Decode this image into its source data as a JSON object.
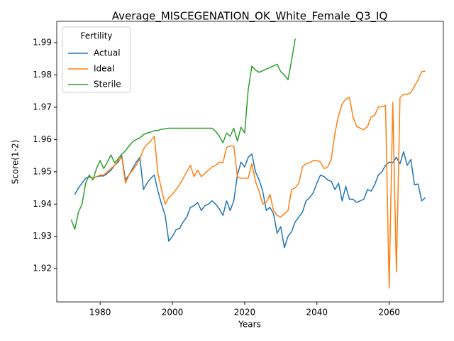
{
  "chart_data": {
    "type": "line",
    "title": "Average_MISCEGENATION_OK_White_Female_Q3_IQ",
    "x_label": "Years",
    "y_label": "Score(1-2)",
    "legend_title": "Fertility",
    "legend_position": "upper left",
    "x": [
      1972,
      1973,
      1974,
      1975,
      1976,
      1977,
      1978,
      1979,
      1980,
      1981,
      1982,
      1983,
      1984,
      1985,
      1986,
      1987,
      1988,
      1989,
      1990,
      1991,
      1992,
      1993,
      1994,
      1995,
      1996,
      1997,
      1998,
      1999,
      2000,
      2001,
      2002,
      2003,
      2004,
      2005,
      2006,
      2007,
      2008,
      2009,
      2010,
      2011,
      2012,
      2013,
      2014,
      2015,
      2016,
      2017,
      2018,
      2019,
      2020,
      2021,
      2022,
      2023,
      2024,
      2025,
      2026,
      2027,
      2028,
      2029,
      2030,
      2031,
      2032,
      2033,
      2034,
      2035,
      2036,
      2037,
      2038,
      2039,
      2040,
      2041,
      2042,
      2043,
      2044,
      2045,
      2046,
      2047,
      2048,
      2049,
      2050,
      2051,
      2052,
      2053,
      2054,
      2055,
      2056,
      2057,
      2058,
      2059,
      2060,
      2061,
      2062,
      2063,
      2064,
      2065,
      2066,
      2067,
      2068,
      2069,
      2070
    ],
    "series": [
      {
        "name": "Actual",
        "color": "#1f77b4",
        "values": [
          null,
          1.943,
          1.945,
          1.9465,
          1.948,
          1.9485,
          1.948,
          1.9485,
          1.9487,
          1.9487,
          1.9495,
          1.9505,
          1.952,
          1.953,
          1.955,
          1.9475,
          1.949,
          1.951,
          1.953,
          1.9545,
          1.9445,
          1.9465,
          1.948,
          1.949,
          1.944,
          1.94,
          1.9365,
          1.9285,
          1.93,
          1.932,
          1.9325,
          1.9345,
          1.936,
          1.939,
          1.9395,
          1.9405,
          1.938,
          1.9395,
          1.94,
          1.941,
          1.94,
          1.9385,
          1.9365,
          1.941,
          1.938,
          1.941,
          1.949,
          1.953,
          1.9515,
          1.9545,
          1.9555,
          1.95,
          1.9475,
          1.944,
          1.938,
          1.939,
          1.937,
          1.931,
          1.933,
          1.9265,
          1.93,
          1.9315,
          1.9345,
          1.936,
          1.9375,
          1.941,
          1.942,
          1.9435,
          1.9465,
          1.949,
          1.9485,
          1.9475,
          1.947,
          1.9445,
          1.9465,
          1.941,
          1.9455,
          1.9415,
          1.9415,
          1.9405,
          1.941,
          1.9415,
          1.9445,
          1.944,
          1.946,
          1.949,
          1.95,
          1.952,
          1.953,
          1.9528,
          1.9545,
          1.9525,
          1.9562,
          1.952,
          1.9538,
          1.946,
          1.9462,
          1.941,
          1.942
        ]
      },
      {
        "name": "Ideal",
        "color": "#ff7f0e",
        "values": [
          null,
          null,
          null,
          null,
          null,
          1.9485,
          1.948,
          1.9485,
          1.949,
          1.949,
          1.95,
          1.951,
          1.952,
          1.9535,
          1.9545,
          1.9465,
          1.949,
          1.9505,
          1.952,
          1.954,
          1.957,
          1.9585,
          1.9595,
          1.961,
          1.9495,
          1.9445,
          1.94,
          1.942,
          1.943,
          1.9445,
          1.946,
          1.948,
          1.95,
          1.952,
          1.9485,
          1.9505,
          1.9485,
          1.9495,
          1.9505,
          1.9515,
          1.952,
          1.953,
          1.9528,
          1.9575,
          1.958,
          1.958,
          1.9485,
          1.948,
          1.948,
          1.948,
          1.9525,
          1.947,
          1.944,
          1.94,
          1.9405,
          1.943,
          1.938,
          1.9365,
          1.936,
          1.937,
          1.938,
          1.9445,
          1.945,
          1.9465,
          1.9515,
          1.9525,
          1.9528,
          1.9535,
          1.9535,
          1.953,
          1.951,
          1.9515,
          1.954,
          1.962,
          1.9675,
          1.971,
          1.9725,
          1.973,
          1.967,
          1.964,
          1.9635,
          1.963,
          1.964,
          1.967,
          1.9675,
          1.97,
          1.9702,
          1.9705,
          1.914,
          1.9715,
          1.919,
          1.973,
          1.974,
          1.974,
          1.9745,
          1.9765,
          1.9785,
          1.981,
          1.9812
        ]
      },
      {
        "name": "Sterile",
        "color": "#2ca02c",
        "values": [
          1.9352,
          1.9322,
          1.9375,
          1.94,
          1.9465,
          1.949,
          1.9475,
          1.951,
          1.9535,
          1.951,
          1.953,
          1.9552,
          1.9528,
          1.954,
          1.9555,
          1.9565,
          1.958,
          1.9593,
          1.96,
          1.9605,
          1.9615,
          1.962,
          1.9623,
          1.9627,
          1.9628,
          1.9632,
          1.9633,
          1.9635,
          1.9635,
          1.9635,
          1.9635,
          1.9635,
          1.9635,
          1.9635,
          1.9635,
          1.9635,
          1.9635,
          1.9635,
          1.9635,
          1.9635,
          1.9625,
          1.961,
          1.959,
          1.962,
          1.961,
          1.9635,
          1.9595,
          1.9638,
          1.962,
          1.9755,
          1.9827,
          1.9815,
          1.9808,
          1.9813,
          1.9818,
          1.9823,
          1.9828,
          1.9833,
          1.981,
          1.98,
          1.9785,
          1.9845,
          1.9912,
          null,
          null,
          null,
          null,
          null,
          null,
          null,
          null,
          null,
          null,
          null,
          null,
          null,
          null,
          null,
          null,
          null,
          null,
          null,
          null,
          null,
          null,
          null,
          null,
          null,
          null,
          null,
          null,
          null,
          null,
          null,
          null,
          null,
          null,
          null,
          null
        ]
      }
    ],
    "xlim": [
      1968,
      2075
    ],
    "xticks": [
      1980,
      2000,
      2020,
      2040,
      2060
    ],
    "ylim": [
      1.9097,
      1.9966
    ],
    "yticks": [
      1.92,
      1.93,
      1.94,
      1.95,
      1.96,
      1.97,
      1.98,
      1.99
    ],
    "grid": false
  }
}
